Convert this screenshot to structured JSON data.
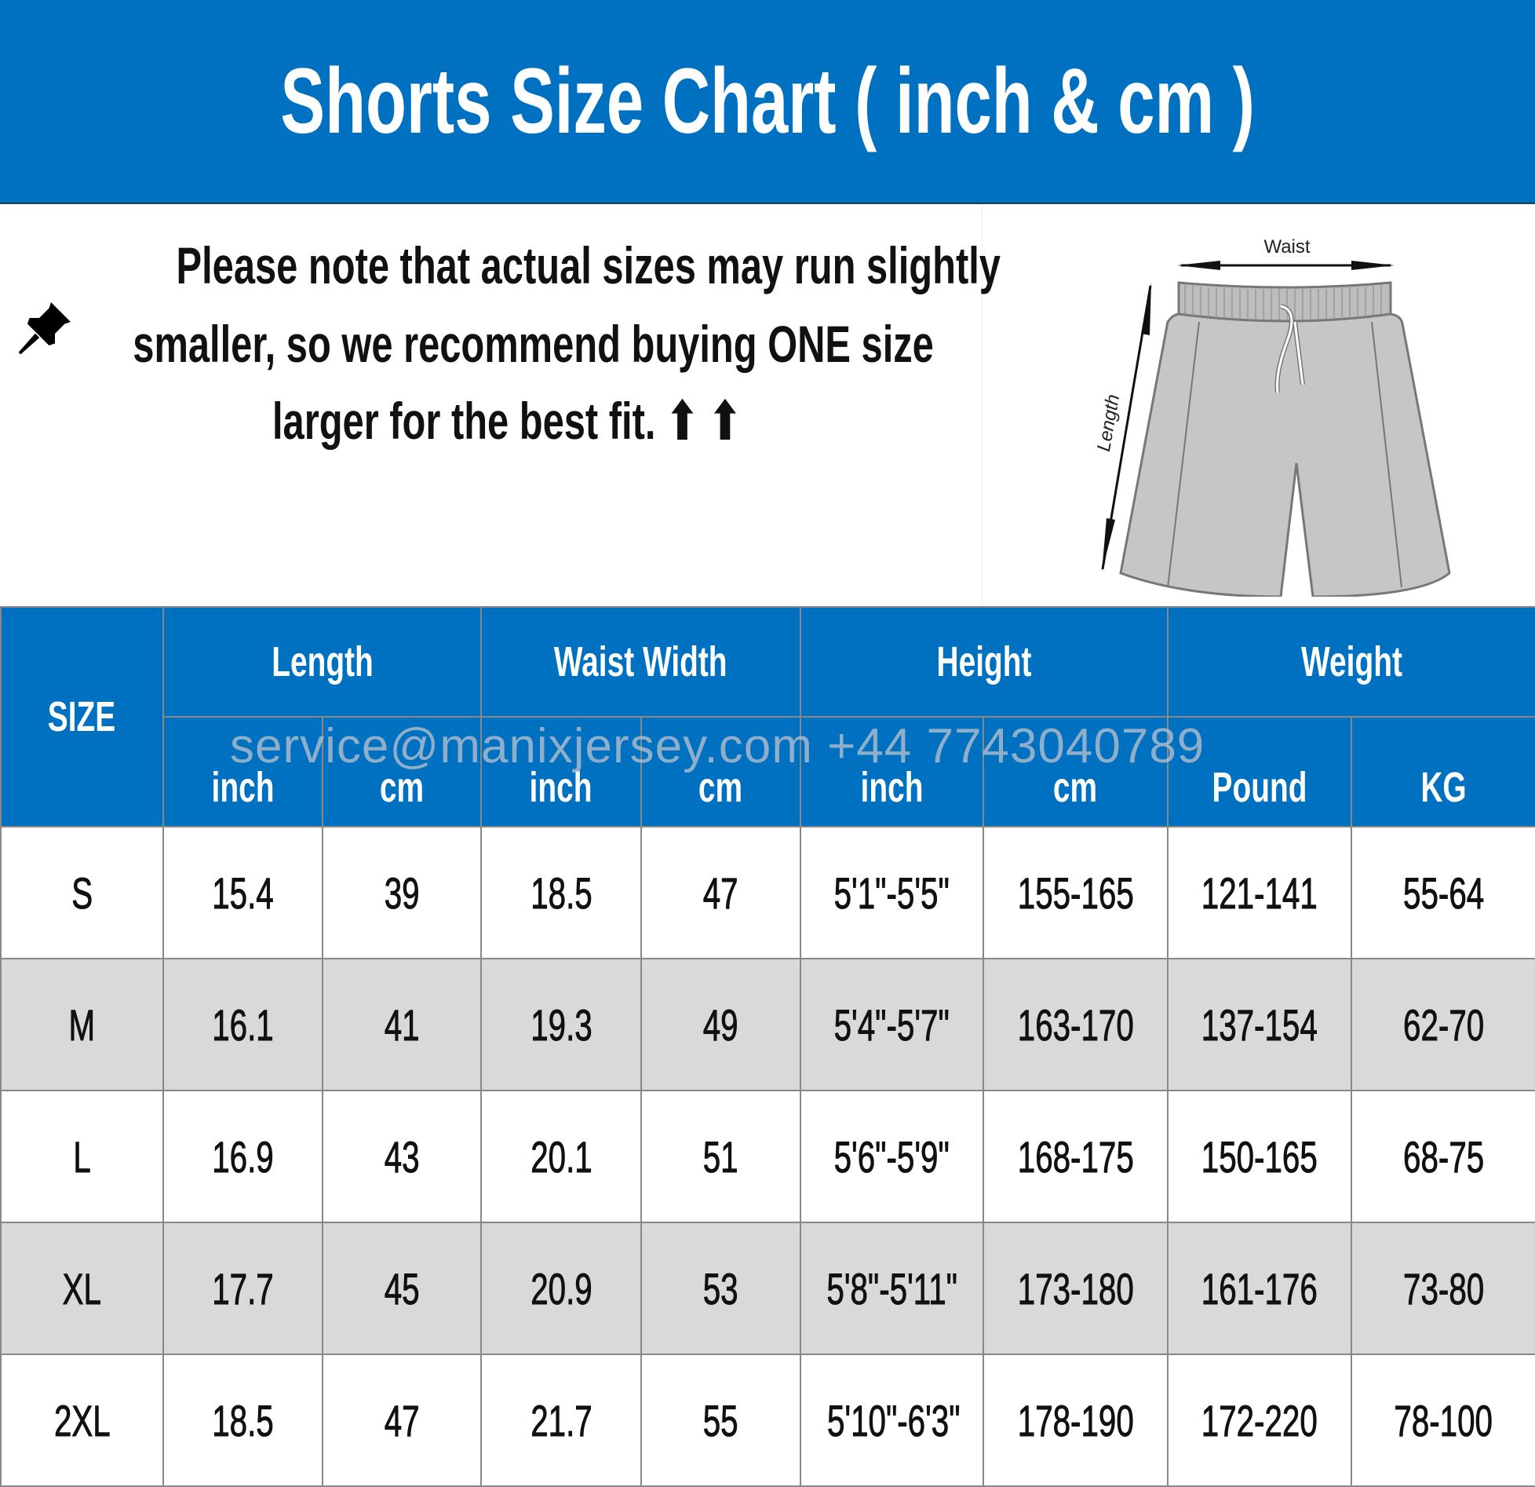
{
  "title": "Shorts Size Chart ( inch & cm )",
  "note": {
    "icon": "pushpin-icon",
    "lines": [
      "Please note that actual sizes may run slightly",
      "smaller, so we recommend buying ONE size",
      "larger for the best fit. ⬆ ⬆"
    ]
  },
  "figure": {
    "waist_label": "Waist",
    "length_label": "Length"
  },
  "watermark": "service@manixjersey.com   +44 7743040789",
  "table": {
    "size_header": "SIZE",
    "groups": [
      "Length",
      "Waist Width",
      "Height",
      "Weight"
    ],
    "units": [
      "inch",
      "cm",
      "inch",
      "cm",
      "inch",
      "cm",
      "Pound",
      "KG"
    ],
    "rows": [
      [
        "S",
        "15.4",
        "39",
        "18.5",
        "47",
        "5'1\"-5'5\"",
        "155-165",
        "121-141",
        "55-64"
      ],
      [
        "M",
        "16.1",
        "41",
        "19.3",
        "49",
        "5'4\"-5'7\"",
        "163-170",
        "137-154",
        "62-70"
      ],
      [
        "L",
        "16.9",
        "43",
        "20.1",
        "51",
        "5'6\"-5'9\"",
        "168-175",
        "150-165",
        "68-75"
      ],
      [
        "XL",
        "17.7",
        "45",
        "20.9",
        "53",
        "5'8\"-5'11\"",
        "173-180",
        "161-176",
        "73-80"
      ],
      [
        "2XL",
        "18.5",
        "47",
        "21.7",
        "55",
        "5'10\"-6'3\"",
        "178-190",
        "172-220",
        "78-100"
      ]
    ]
  },
  "colors": {
    "header_blue": "#0070C0",
    "alt_row": "#d9d9d9"
  }
}
